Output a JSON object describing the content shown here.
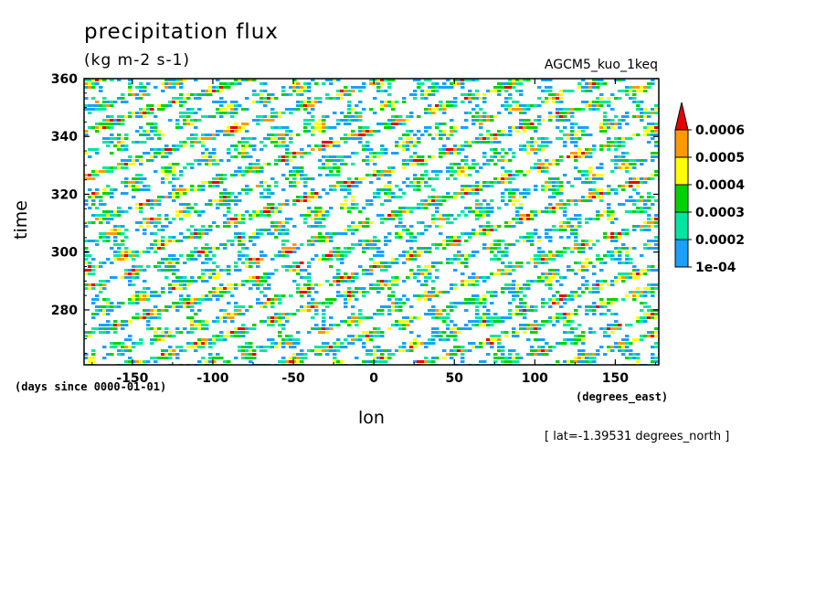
{
  "chart_data": {
    "type": "heatmap",
    "title": "precipitation flux",
    "subtitle": "(kg m-2 s-1)",
    "run_label": "AGCM5_kuo_1keq",
    "xlabel": "lon",
    "ylabel": "time",
    "x_units": "(degrees_east)",
    "y_units": "(days since 0000-01-01)",
    "annotation": "[ lat=-1.39531 degrees_north ]",
    "xlim": [
      -180,
      177
    ],
    "ylim": [
      261,
      360
    ],
    "xticks": [
      -150,
      -100,
      -50,
      0,
      50,
      100,
      150
    ],
    "xtick_labels": [
      "-150",
      "-100",
      "-50",
      "0",
      "50",
      "100",
      "150"
    ],
    "yticks": [
      280,
      300,
      320,
      340,
      360
    ],
    "ytick_labels": [
      "280",
      "300",
      "320",
      "340",
      "360"
    ],
    "colorbar": {
      "levels": [
        0.0001,
        0.0002,
        0.0003,
        0.0004,
        0.0005,
        0.0006
      ],
      "labels": [
        "1e-04",
        "0.0002",
        "0.0003",
        "0.0004",
        "0.0005",
        "0.0006"
      ],
      "colors": [
        "#1aa0ff",
        "#00e6a0",
        "#00d200",
        "#ffff00",
        "#ff9900",
        "#e60000"
      ],
      "extend": "max"
    },
    "pattern": "eastward-propagating precipitation streaks with many small patches"
  }
}
